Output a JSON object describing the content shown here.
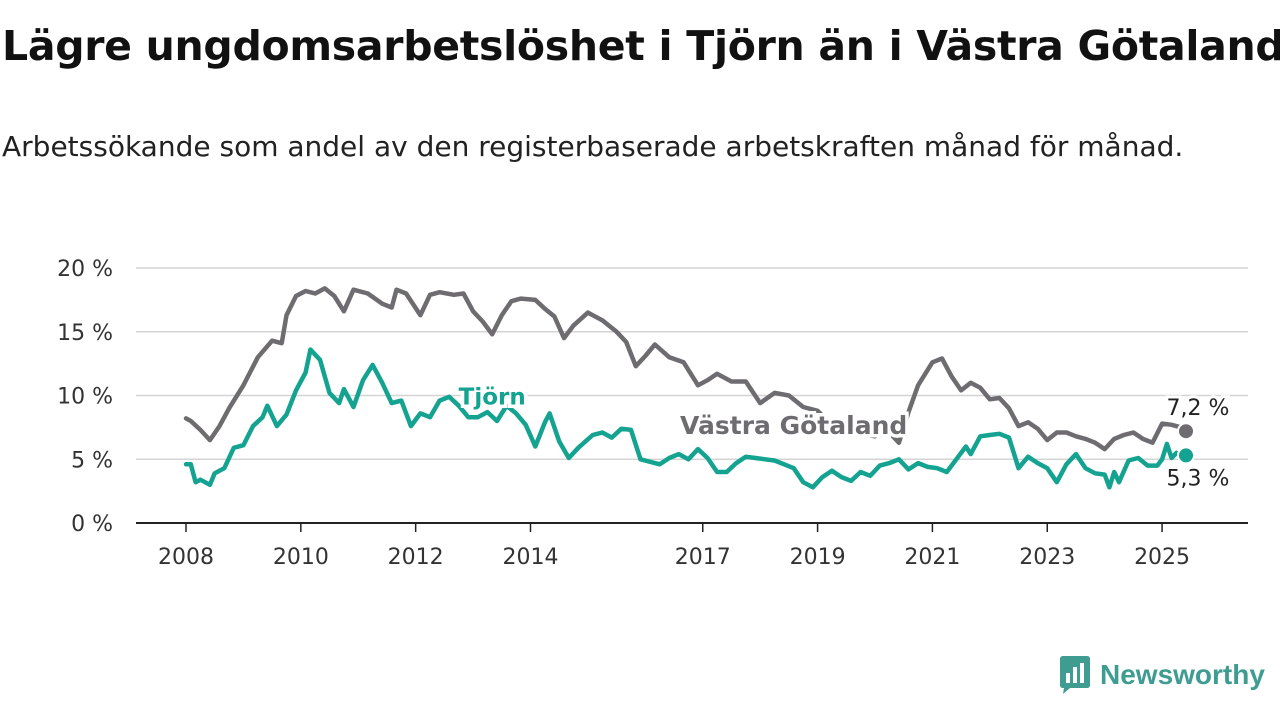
{
  "header": {
    "title": "Lägre ungdomsarbetslöshet i Tjörn än i Västra Götaland",
    "subtitle": "Arbetssökande som andel av den registerbaserade arbetskraften månad för månad."
  },
  "brand": {
    "name": "Newsworthy",
    "icon": "newsworthy-logo-icon",
    "color": "#3e9c91"
  },
  "chart_data": {
    "type": "line",
    "x_tick_labels": [
      "2008",
      "2010",
      "2012",
      "2014",
      "2017",
      "2019",
      "2021",
      "2023",
      "2025"
    ],
    "y_tick_labels": [
      "0 %",
      "5 %",
      "10 %",
      "15 %",
      "20 %"
    ],
    "ylim": [
      0,
      20
    ],
    "xlim": [
      "2008-01",
      "2025-06"
    ],
    "grid": true,
    "series": [
      {
        "name": "Västra Götaland",
        "color": "#6e6c70",
        "end_label": "7,2 %",
        "points": [
          [
            "2008-01",
            8.2
          ],
          [
            "2008-02",
            8.0
          ],
          [
            "2008-04",
            7.3
          ],
          [
            "2008-06",
            6.5
          ],
          [
            "2008-08",
            7.6
          ],
          [
            "2008-10",
            9.0
          ],
          [
            "2009-01",
            10.8
          ],
          [
            "2009-04",
            13.0
          ],
          [
            "2009-07",
            14.3
          ],
          [
            "2009-09",
            14.1
          ],
          [
            "2009-10",
            16.3
          ],
          [
            "2009-12",
            17.8
          ],
          [
            "2010-02",
            18.2
          ],
          [
            "2010-04",
            18.0
          ],
          [
            "2010-06",
            18.4
          ],
          [
            "2010-08",
            17.8
          ],
          [
            "2010-10",
            16.6
          ],
          [
            "2010-12",
            18.3
          ],
          [
            "2011-03",
            18.0
          ],
          [
            "2011-06",
            17.2
          ],
          [
            "2011-08",
            16.9
          ],
          [
            "2011-09",
            18.3
          ],
          [
            "2011-11",
            18.0
          ],
          [
            "2012-02",
            16.3
          ],
          [
            "2012-04",
            17.9
          ],
          [
            "2012-06",
            18.1
          ],
          [
            "2012-09",
            17.9
          ],
          [
            "2012-11",
            18.0
          ],
          [
            "2013-01",
            16.6
          ],
          [
            "2013-03",
            15.8
          ],
          [
            "2013-05",
            14.8
          ],
          [
            "2013-07",
            16.3
          ],
          [
            "2013-09",
            17.4
          ],
          [
            "2013-11",
            17.6
          ],
          [
            "2014-02",
            17.5
          ],
          [
            "2014-04",
            16.8
          ],
          [
            "2014-06",
            16.2
          ],
          [
            "2014-08",
            14.5
          ],
          [
            "2014-10",
            15.5
          ],
          [
            "2015-01",
            16.5
          ],
          [
            "2015-04",
            15.9
          ],
          [
            "2015-07",
            15.0
          ],
          [
            "2015-09",
            14.2
          ],
          [
            "2015-11",
            12.3
          ],
          [
            "2016-01",
            13.1
          ],
          [
            "2016-03",
            14.0
          ],
          [
            "2016-06",
            13.0
          ],
          [
            "2016-09",
            12.6
          ],
          [
            "2016-12",
            10.8
          ],
          [
            "2017-02",
            11.2
          ],
          [
            "2017-04",
            11.7
          ],
          [
            "2017-07",
            11.1
          ],
          [
            "2017-10",
            11.1
          ],
          [
            "2018-01",
            9.4
          ],
          [
            "2018-04",
            10.2
          ],
          [
            "2018-07",
            10.0
          ],
          [
            "2018-10",
            9.1
          ],
          [
            "2019-01",
            8.8
          ],
          [
            "2019-04",
            7.7
          ],
          [
            "2019-08",
            7.3
          ],
          [
            "2019-10",
            7.0
          ],
          [
            "2020-01",
            6.8
          ],
          [
            "2020-03",
            7.5
          ],
          [
            "2020-06",
            6.3
          ],
          [
            "2020-08",
            8.7
          ],
          [
            "2020-10",
            10.8
          ],
          [
            "2021-01",
            12.6
          ],
          [
            "2021-03",
            12.9
          ],
          [
            "2021-05",
            11.5
          ],
          [
            "2021-07",
            10.4
          ],
          [
            "2021-09",
            11.0
          ],
          [
            "2021-11",
            10.6
          ],
          [
            "2022-01",
            9.7
          ],
          [
            "2022-03",
            9.8
          ],
          [
            "2022-05",
            9.0
          ],
          [
            "2022-07",
            7.6
          ],
          [
            "2022-09",
            7.9
          ],
          [
            "2022-11",
            7.4
          ],
          [
            "2023-01",
            6.5
          ],
          [
            "2023-03",
            7.1
          ],
          [
            "2023-05",
            7.1
          ],
          [
            "2023-07",
            6.8
          ],
          [
            "2023-09",
            6.6
          ],
          [
            "2023-11",
            6.3
          ],
          [
            "2024-01",
            5.8
          ],
          [
            "2024-03",
            6.6
          ],
          [
            "2024-05",
            6.9
          ],
          [
            "2024-07",
            7.1
          ],
          [
            "2024-09",
            6.6
          ],
          [
            "2024-11",
            6.3
          ],
          [
            "2025-01",
            7.8
          ],
          [
            "2025-03",
            7.7
          ],
          [
            "2025-05",
            7.5
          ],
          [
            "2025-06",
            7.2
          ]
        ]
      },
      {
        "name": "Tjörn",
        "color": "#13a390",
        "end_label": "5,3 %",
        "points": [
          [
            "2008-01",
            4.6
          ],
          [
            "2008-02",
            4.6
          ],
          [
            "2008-03",
            3.2
          ],
          [
            "2008-04",
            3.4
          ],
          [
            "2008-06",
            3.0
          ],
          [
            "2008-07",
            3.9
          ],
          [
            "2008-09",
            4.3
          ],
          [
            "2008-11",
            5.9
          ],
          [
            "2009-01",
            6.1
          ],
          [
            "2009-03",
            7.6
          ],
          [
            "2009-05",
            8.3
          ],
          [
            "2009-06",
            9.2
          ],
          [
            "2009-08",
            7.6
          ],
          [
            "2009-10",
            8.5
          ],
          [
            "2009-12",
            10.4
          ],
          [
            "2010-02",
            11.8
          ],
          [
            "2010-03",
            13.6
          ],
          [
            "2010-05",
            12.8
          ],
          [
            "2010-07",
            10.2
          ],
          [
            "2010-09",
            9.4
          ],
          [
            "2010-10",
            10.5
          ],
          [
            "2010-12",
            9.1
          ],
          [
            "2011-02",
            11.2
          ],
          [
            "2011-04",
            12.4
          ],
          [
            "2011-06",
            11.0
          ],
          [
            "2011-08",
            9.4
          ],
          [
            "2011-10",
            9.6
          ],
          [
            "2011-12",
            7.6
          ],
          [
            "2012-02",
            8.6
          ],
          [
            "2012-04",
            8.3
          ],
          [
            "2012-06",
            9.6
          ],
          [
            "2012-08",
            9.9
          ],
          [
            "2012-10",
            9.2
          ],
          [
            "2012-12",
            8.3
          ],
          [
            "2013-02",
            8.3
          ],
          [
            "2013-04",
            8.7
          ],
          [
            "2013-06",
            8.0
          ],
          [
            "2013-08",
            9.2
          ],
          [
            "2013-10",
            8.6
          ],
          [
            "2013-12",
            7.7
          ],
          [
            "2014-02",
            6.0
          ],
          [
            "2014-04",
            7.9
          ],
          [
            "2014-05",
            8.6
          ],
          [
            "2014-07",
            6.4
          ],
          [
            "2014-09",
            5.1
          ],
          [
            "2014-11",
            5.9
          ],
          [
            "2015-02",
            6.9
          ],
          [
            "2015-04",
            7.1
          ],
          [
            "2015-06",
            6.7
          ],
          [
            "2015-08",
            7.4
          ],
          [
            "2015-10",
            7.3
          ],
          [
            "2015-12",
            5.0
          ],
          [
            "2016-02",
            4.8
          ],
          [
            "2016-04",
            4.6
          ],
          [
            "2016-06",
            5.1
          ],
          [
            "2016-08",
            5.4
          ],
          [
            "2016-10",
            5.0
          ],
          [
            "2016-12",
            5.8
          ],
          [
            "2017-02",
            5.1
          ],
          [
            "2017-04",
            4.0
          ],
          [
            "2017-06",
            4.0
          ],
          [
            "2017-08",
            4.7
          ],
          [
            "2017-10",
            5.2
          ],
          [
            "2017-12",
            5.1
          ],
          [
            "2018-02",
            5.0
          ],
          [
            "2018-04",
            4.9
          ],
          [
            "2018-06",
            4.6
          ],
          [
            "2018-08",
            4.3
          ],
          [
            "2018-10",
            3.2
          ],
          [
            "2018-12",
            2.8
          ],
          [
            "2019-02",
            3.6
          ],
          [
            "2019-04",
            4.1
          ],
          [
            "2019-06",
            3.6
          ],
          [
            "2019-08",
            3.3
          ],
          [
            "2019-10",
            4.0
          ],
          [
            "2019-12",
            3.7
          ],
          [
            "2020-02",
            4.5
          ],
          [
            "2020-04",
            4.7
          ],
          [
            "2020-06",
            5.0
          ],
          [
            "2020-08",
            4.2
          ],
          [
            "2020-10",
            4.7
          ],
          [
            "2020-12",
            4.4
          ],
          [
            "2021-02",
            4.3
          ],
          [
            "2021-04",
            4.0
          ],
          [
            "2021-06",
            5.0
          ],
          [
            "2021-08",
            6.0
          ],
          [
            "2021-09",
            5.4
          ],
          [
            "2021-11",
            6.8
          ],
          [
            "2022-01",
            6.9
          ],
          [
            "2022-03",
            7.0
          ],
          [
            "2022-05",
            6.7
          ],
          [
            "2022-07",
            4.3
          ],
          [
            "2022-09",
            5.2
          ],
          [
            "2022-11",
            4.7
          ],
          [
            "2023-01",
            4.3
          ],
          [
            "2023-03",
            3.2
          ],
          [
            "2023-05",
            4.6
          ],
          [
            "2023-07",
            5.4
          ],
          [
            "2023-09",
            4.3
          ],
          [
            "2023-11",
            3.9
          ],
          [
            "2024-01",
            3.8
          ],
          [
            "2024-02",
            2.8
          ],
          [
            "2024-03",
            4.0
          ],
          [
            "2024-04",
            3.2
          ],
          [
            "2024-06",
            4.9
          ],
          [
            "2024-08",
            5.1
          ],
          [
            "2024-10",
            4.5
          ],
          [
            "2024-12",
            4.5
          ],
          [
            "2025-01",
            5.0
          ],
          [
            "2025-02",
            6.2
          ],
          [
            "2025-03",
            5.1
          ],
          [
            "2025-04",
            5.5
          ],
          [
            "2025-05",
            5.2
          ],
          [
            "2025-06",
            5.3
          ]
        ]
      }
    ]
  }
}
